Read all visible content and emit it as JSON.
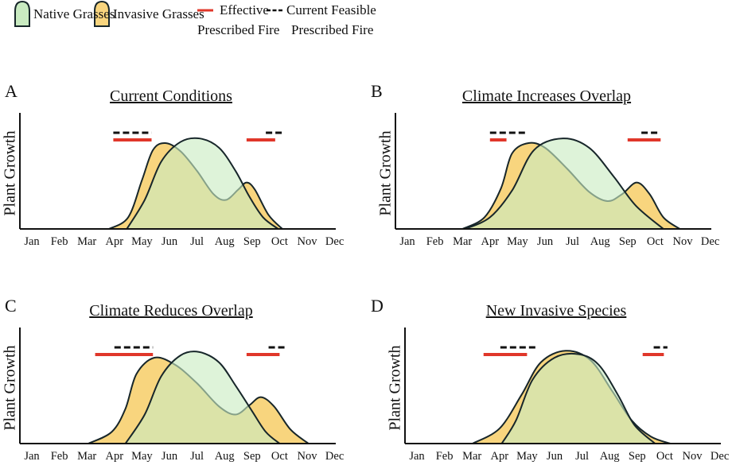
{
  "legend": {
    "native": "Native Grasses",
    "invasive": "Invasive Grasses",
    "effective_line1": "Effective",
    "effective_line2": "Prescribed Fire",
    "feasible_line1": "Current Feasible",
    "feasible_line2": "Prescribed Fire"
  },
  "colors": {
    "native_fill": "#c9ebc1",
    "invasive_fill": "#f8d57e",
    "outline": "#17262a",
    "effective_fire": "#e0372a",
    "feasible_fire": "#111111"
  },
  "chart_data": [
    {
      "type": "area",
      "panel": "A",
      "title": "Current Conditions",
      "ylabel": "Plant Growth",
      "categories": [
        "Jan",
        "Feb",
        "Mar",
        "Apr",
        "May",
        "Jun",
        "Jul",
        "Aug",
        "Sep",
        "Oct",
        "Nov",
        "Dec"
      ],
      "series": [
        {
          "name": "Invasive Grasses",
          "points": [
            [
              3.8,
              0
            ],
            [
              4.5,
              0.1
            ],
            [
              5.0,
              0.42
            ],
            [
              5.4,
              0.68
            ],
            [
              5.85,
              0.74
            ],
            [
              6.4,
              0.67
            ],
            [
              7.0,
              0.5
            ],
            [
              7.6,
              0.3
            ],
            [
              8.05,
              0.25
            ],
            [
              8.5,
              0.34
            ],
            [
              8.8,
              0.4
            ],
            [
              9.1,
              0.34
            ],
            [
              9.6,
              0.12
            ],
            [
              10.1,
              0
            ]
          ]
        },
        {
          "name": "Native Grasses",
          "points": [
            [
              4.45,
              0
            ],
            [
              5.1,
              0.25
            ],
            [
              5.7,
              0.58
            ],
            [
              6.4,
              0.75
            ],
            [
              7.1,
              0.78
            ],
            [
              7.8,
              0.7
            ],
            [
              8.4,
              0.5
            ],
            [
              8.9,
              0.28
            ],
            [
              9.4,
              0.1
            ],
            [
              9.95,
              0
            ]
          ]
        }
      ],
      "effective_fire": [
        [
          3.96,
          5.35
        ],
        [
          8.8,
          9.84
        ]
      ],
      "feasible_fire": [
        [
          3.96,
          5.35
        ],
        [
          9.5,
          10.1
        ]
      ]
    },
    {
      "type": "area",
      "panel": "B",
      "title": "Climate Increases Overlap",
      "ylabel": "Plant Growth",
      "categories": [
        "Jan",
        "Feb",
        "Mar",
        "Apr",
        "May",
        "Jun",
        "Jul",
        "Aug",
        "Sep",
        "Oct",
        "Nov",
        "Dec"
      ],
      "series": [
        {
          "name": "Invasive Grasses",
          "points": [
            [
              3.0,
              0
            ],
            [
              3.8,
              0.1
            ],
            [
              4.4,
              0.35
            ],
            [
              4.8,
              0.65
            ],
            [
              5.4,
              0.74
            ],
            [
              6.0,
              0.7
            ],
            [
              6.8,
              0.52
            ],
            [
              7.6,
              0.32
            ],
            [
              8.27,
              0.24
            ],
            [
              8.8,
              0.3
            ],
            [
              9.33,
              0.4
            ],
            [
              9.8,
              0.3
            ],
            [
              10.3,
              0.1
            ],
            [
              10.9,
              0
            ]
          ]
        },
        {
          "name": "Native Grasses",
          "points": [
            [
              3.1,
              0
            ],
            [
              4.0,
              0.1
            ],
            [
              4.8,
              0.33
            ],
            [
              5.6,
              0.68
            ],
            [
              6.65,
              0.78
            ],
            [
              7.6,
              0.7
            ],
            [
              8.5,
              0.45
            ],
            [
              9.3,
              0.2
            ],
            [
              10.3,
              0
            ]
          ]
        }
      ],
      "effective_fire": [
        [
          4.0,
          4.6
        ],
        [
          9.0,
          10.2
        ]
      ],
      "feasible_fire": [
        [
          4.0,
          5.37
        ],
        [
          9.5,
          10.1
        ]
      ]
    },
    {
      "type": "area",
      "panel": "C",
      "title": "Climate Reduces Overlap",
      "ylabel": "Plant Growth",
      "categories": [
        "Jan",
        "Feb",
        "Mar",
        "Apr",
        "May",
        "Jun",
        "Jul",
        "Aug",
        "Sep",
        "Oct",
        "Nov",
        "Dec"
      ],
      "series": [
        {
          "name": "Invasive Grasses",
          "points": [
            [
              3.05,
              0
            ],
            [
              3.9,
              0.1
            ],
            [
              4.4,
              0.3
            ],
            [
              4.8,
              0.6
            ],
            [
              5.45,
              0.74
            ],
            [
              6.2,
              0.68
            ],
            [
              7.0,
              0.52
            ],
            [
              7.8,
              0.32
            ],
            [
              8.4,
              0.25
            ],
            [
              8.9,
              0.33
            ],
            [
              9.32,
              0.4
            ],
            [
              9.8,
              0.32
            ],
            [
              10.4,
              0.12
            ],
            [
              11.05,
              0
            ]
          ]
        },
        {
          "name": "Native Grasses",
          "points": [
            [
              4.4,
              0
            ],
            [
              5.1,
              0.25
            ],
            [
              5.7,
              0.58
            ],
            [
              6.4,
              0.76
            ],
            [
              7.07,
              0.79
            ],
            [
              7.8,
              0.7
            ],
            [
              8.4,
              0.5
            ],
            [
              9.0,
              0.28
            ],
            [
              9.5,
              0.1
            ],
            [
              10.0,
              0
            ]
          ]
        }
      ],
      "effective_fire": [
        [
          3.3,
          5.4
        ],
        [
          8.8,
          10.0
        ]
      ],
      "feasible_fire": [
        [
          4.0,
          5.4
        ],
        [
          9.6,
          10.2
        ]
      ]
    },
    {
      "type": "area",
      "panel": "D",
      "title": "New Invasive Species",
      "ylabel": "Plant Growth",
      "categories": [
        "Jan",
        "Feb",
        "Mar",
        "Apr",
        "May",
        "Jun",
        "Jul",
        "Aug",
        "Sep",
        "Oct",
        "Nov",
        "Dec"
      ],
      "series": [
        {
          "name": "Invasive Grasses",
          "points": [
            [
              3.02,
              0
            ],
            [
              4.0,
              0.13
            ],
            [
              4.8,
              0.42
            ],
            [
              5.5,
              0.7
            ],
            [
              6.4,
              0.8
            ],
            [
              7.3,
              0.72
            ],
            [
              8.1,
              0.45
            ],
            [
              8.8,
              0.2
            ],
            [
              9.5,
              0.06
            ],
            [
              10.2,
              0
            ]
          ]
        },
        {
          "name": "Native Grasses",
          "points": [
            [
              4.08,
              0
            ],
            [
              4.6,
              0.2
            ],
            [
              5.2,
              0.55
            ],
            [
              6.0,
              0.74
            ],
            [
              6.88,
              0.77
            ],
            [
              7.6,
              0.68
            ],
            [
              8.3,
              0.42
            ],
            [
              8.9,
              0.16
            ],
            [
              9.65,
              0
            ]
          ]
        }
      ],
      "effective_fire": [
        [
          3.42,
          5.0
        ],
        [
          9.2,
          9.97
        ]
      ],
      "feasible_fire": [
        [
          4.03,
          5.4
        ],
        [
          9.6,
          10.1
        ]
      ]
    }
  ]
}
